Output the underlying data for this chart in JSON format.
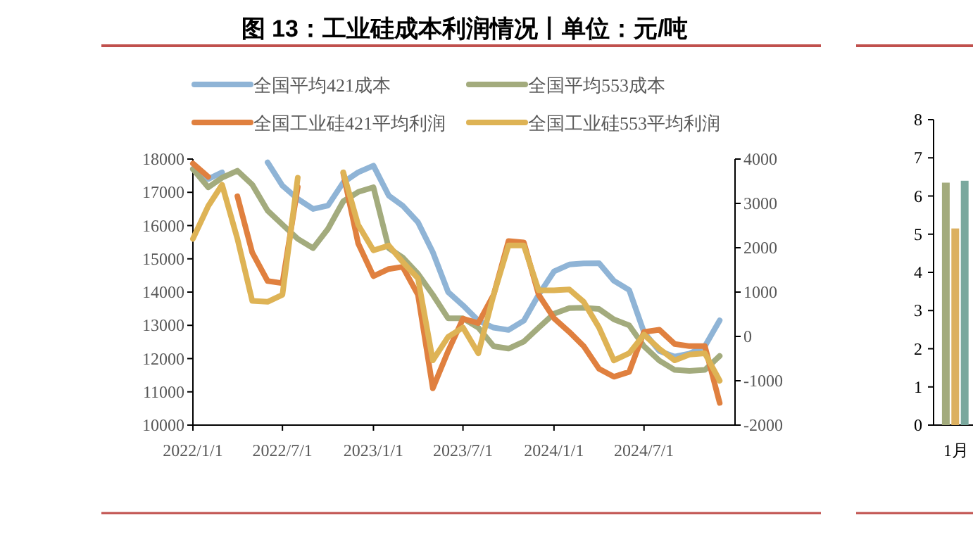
{
  "chart_data": [
    {
      "type": "line",
      "title": "图 13：工业硅成本利润情况丨单位：元/吨",
      "legend": "top",
      "marker": "none",
      "line_style": "solid",
      "grid": false,
      "x": [
        "2022-01",
        "2022-02",
        "2022-03",
        "2022-04",
        "2022-05",
        "2022-06",
        "2022-07",
        "2022-08",
        "2022-09",
        "2022-10",
        "2022-11",
        "2022-12",
        "2023-01",
        "2023-02",
        "2023-03",
        "2023-04",
        "2023-05",
        "2023-06",
        "2023-07",
        "2023-08",
        "2023-09",
        "2023-10",
        "2023-11",
        "2023-12",
        "2024-01",
        "2024-02",
        "2024-03",
        "2024-04",
        "2024-05",
        "2024-06",
        "2024-07",
        "2024-08",
        "2024-09",
        "2024-10",
        "2024-11",
        "2024-12"
      ],
      "xlim": [
        "2022-01-01",
        "2025-01-01"
      ],
      "xticks": [
        {
          "value": "2022-01-01",
          "label": "2022/1/1"
        },
        {
          "value": "2022-07-01",
          "label": "2022/7/1"
        },
        {
          "value": "2023-01-01",
          "label": "2023/1/1"
        },
        {
          "value": "2023-07-01",
          "label": "2023/7/1"
        },
        {
          "value": "2024-01-01",
          "label": "2024/1/1"
        },
        {
          "value": "2024-07-01",
          "label": "2024/7/1"
        }
      ],
      "ylim": [
        10000,
        18000
      ],
      "yticks": [
        10000,
        11000,
        12000,
        13000,
        14000,
        15000,
        16000,
        17000,
        18000
      ],
      "y2lim": [
        -2000,
        4000
      ],
      "y2ticks": [
        -2000,
        -1000,
        0,
        1000,
        2000,
        3000,
        4000
      ],
      "series": [
        {
          "name": "全国平均421成本",
          "color": "#8fb4d6",
          "values": [
            17700,
            17400,
            17600,
            null,
            null,
            17900,
            17200,
            16800,
            16500,
            16600,
            17300,
            17600,
            17800,
            16900,
            16600,
            16100,
            15200,
            14000,
            13600,
            13140,
            12930,
            12860,
            13140,
            13920,
            14620,
            14830,
            14860,
            14870,
            14340,
            14060,
            12790,
            12230,
            12060,
            12150,
            12370,
            13150
          ]
        },
        {
          "name": "全国平均553成本",
          "color": "#a3ab7d",
          "values": [
            17700,
            17150,
            17440,
            17650,
            17230,
            16450,
            16030,
            15600,
            15320,
            15900,
            16730,
            17010,
            17150,
            15320,
            15040,
            14550,
            13920,
            13210,
            13210,
            12930,
            12370,
            12300,
            12510,
            12930,
            13350,
            13520,
            13530,
            13490,
            13180,
            13000,
            12370,
            11940,
            11660,
            11630,
            11660,
            12080
          ]
        },
        {
          "name": "全国工业硅421平均利润",
          "color": "#e0803f",
          "axis": "y2",
          "values": [
            3900,
            3600,
            null,
            3160,
            1890,
            1250,
            1200,
            3370,
            null,
            null,
            3680,
            2100,
            1360,
            1520,
            1570,
            940,
            -1170,
            -330,
            400,
            300,
            940,
            2150,
            2120,
            940,
            410,
            100,
            -220,
            -730,
            -910,
            -800,
            100,
            150,
            -170,
            -220,
            -220,
            -1500
          ]
        },
        {
          "name": "全国工业硅553平均利润",
          "color": "#deb355",
          "axis": "y2",
          "values": [
            2200,
            2940,
            3420,
            2200,
            800,
            780,
            940,
            3580,
            null,
            null,
            3700,
            2520,
            1940,
            2050,
            1680,
            1310,
            -540,
            -10,
            200,
            -380,
            940,
            2050,
            2050,
            1040,
            1040,
            1060,
            780,
            200,
            -540,
            -380,
            40,
            -280,
            -540,
            -410,
            -380,
            -1000
          ]
        }
      ]
    },
    {
      "type": "bar",
      "categories": [
        "1月"
      ],
      "ylim": [
        0,
        8
      ],
      "yticks": [
        0,
        1,
        2,
        3,
        4,
        5,
        6,
        7,
        8
      ],
      "series": [
        {
          "color": "#a3ab7d",
          "values": [
            6.35
          ]
        },
        {
          "color": "#dcb060",
          "values": [
            5.15
          ]
        },
        {
          "color": "#7aa89e",
          "values": [
            6.4
          ]
        }
      ]
    }
  ]
}
